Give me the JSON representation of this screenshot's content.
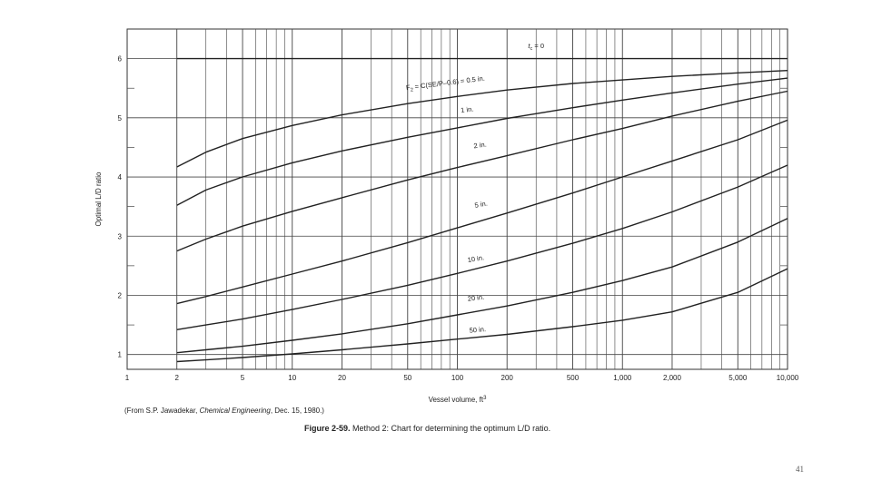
{
  "chart_data": {
    "type": "line",
    "xscale": "log",
    "xlim": [
      1,
      10000
    ],
    "ylim": [
      0.75,
      6.5
    ],
    "grid": true,
    "legend": "none",
    "ylabel": "Optimal L/D ratio",
    "xlabel": "Vessel volume, ft",
    "xlabel_superscript": "3",
    "x_ticks": [
      {
        "v": 1,
        "label": "1"
      },
      {
        "v": 2,
        "label": "2"
      },
      {
        "v": 5,
        "label": "5"
      },
      {
        "v": 10,
        "label": "10"
      },
      {
        "v": 20,
        "label": "20"
      },
      {
        "v": 50,
        "label": "50"
      },
      {
        "v": 100,
        "label": "100"
      },
      {
        "v": 200,
        "label": "200"
      },
      {
        "v": 500,
        "label": "500"
      },
      {
        "v": 1000,
        "label": "1,000"
      },
      {
        "v": 2000,
        "label": "2,000"
      },
      {
        "v": 5000,
        "label": "5,000"
      },
      {
        "v": 10000,
        "label": "10,000"
      }
    ],
    "y_ticks": [
      {
        "v": 1,
        "label": "1"
      },
      {
        "v": 2,
        "label": "2"
      },
      {
        "v": 3,
        "label": "3"
      },
      {
        "v": 4,
        "label": "4"
      },
      {
        "v": 5,
        "label": "5"
      },
      {
        "v": 6,
        "label": "6"
      }
    ],
    "series": [
      {
        "name": "tc = 0",
        "label_pre": "t",
        "label_sub": "c",
        "label_post": " = 0",
        "label_x": 300,
        "label_y": 6.18,
        "label_rot": 0,
        "x": [
          2,
          10000
        ],
        "y": [
          6.0,
          6.0
        ]
      },
      {
        "name": "F2 = C(SE/P - 0.6) = 0.5 in.",
        "label_pre": "F",
        "label_sub": "2",
        "label_post": " = C(SE/P–0.6) = 0.5 in.",
        "label_x": 85,
        "label_y": 5.55,
        "label_rot": -7,
        "x": [
          2,
          3,
          5,
          10,
          20,
          50,
          100,
          200,
          500,
          1000,
          2000,
          5000,
          10000
        ],
        "y": [
          4.17,
          4.42,
          4.65,
          4.87,
          5.05,
          5.24,
          5.36,
          5.47,
          5.58,
          5.64,
          5.7,
          5.76,
          5.8
        ]
      },
      {
        "name": "1 in.",
        "label_pre": "1 in.",
        "label_sub": "",
        "label_post": "",
        "label_x": 115,
        "label_y": 5.1,
        "label_rot": -7,
        "x": [
          2,
          3,
          5,
          10,
          20,
          50,
          100,
          200,
          500,
          1000,
          2000,
          5000,
          10000
        ],
        "y": [
          3.52,
          3.78,
          4.0,
          4.24,
          4.44,
          4.67,
          4.83,
          4.99,
          5.17,
          5.3,
          5.42,
          5.57,
          5.67
        ]
      },
      {
        "name": "2 in.",
        "label_pre": "2 in.",
        "label_sub": "",
        "label_post": "",
        "label_x": 138,
        "label_y": 4.5,
        "label_rot": -8,
        "x": [
          2,
          3,
          5,
          10,
          20,
          50,
          100,
          200,
          500,
          1000,
          2000,
          5000,
          10000
        ],
        "y": [
          2.75,
          2.95,
          3.17,
          3.42,
          3.65,
          3.95,
          4.16,
          4.36,
          4.63,
          4.82,
          5.03,
          5.28,
          5.45
        ]
      },
      {
        "name": "5 in.",
        "label_pre": "5 in.",
        "label_sub": "",
        "label_post": "",
        "label_x": 140,
        "label_y": 3.5,
        "label_rot": -10,
        "x": [
          2,
          3,
          5,
          10,
          20,
          50,
          100,
          200,
          500,
          1000,
          2000,
          5000,
          10000
        ],
        "y": [
          1.86,
          1.98,
          2.14,
          2.36,
          2.58,
          2.89,
          3.14,
          3.39,
          3.73,
          4.0,
          4.27,
          4.63,
          4.96
        ]
      },
      {
        "name": "10 in.",
        "label_pre": "10 in.",
        "label_sub": "",
        "label_post": "",
        "label_x": 130,
        "label_y": 2.58,
        "label_rot": -9,
        "x": [
          2,
          3,
          5,
          10,
          20,
          50,
          100,
          200,
          500,
          1000,
          2000,
          5000,
          10000
        ],
        "y": [
          1.42,
          1.5,
          1.6,
          1.76,
          1.93,
          2.17,
          2.37,
          2.58,
          2.88,
          3.13,
          3.41,
          3.83,
          4.2
        ]
      },
      {
        "name": "20 in.",
        "label_pre": "20 in.",
        "label_sub": "",
        "label_post": "",
        "label_x": 130,
        "label_y": 1.92,
        "label_rot": -7,
        "x": [
          2,
          3,
          5,
          10,
          20,
          50,
          100,
          200,
          500,
          1000,
          2000,
          5000,
          10000
        ],
        "y": [
          1.03,
          1.08,
          1.14,
          1.24,
          1.35,
          1.52,
          1.67,
          1.82,
          2.05,
          2.25,
          2.48,
          2.9,
          3.3
        ]
      },
      {
        "name": "50 in.",
        "label_pre": "50 in.",
        "label_sub": "",
        "label_post": "",
        "label_x": 133,
        "label_y": 1.38,
        "label_rot": -5,
        "x": [
          2,
          3,
          5,
          10,
          20,
          50,
          100,
          200,
          500,
          1000,
          2000,
          5000,
          10000
        ],
        "y": [
          0.88,
          0.91,
          0.95,
          1.01,
          1.08,
          1.18,
          1.26,
          1.34,
          1.47,
          1.58,
          1.72,
          2.05,
          2.45
        ]
      }
    ]
  },
  "source_note": {
    "pre": "(From S.P. Jawadekar, ",
    "journal": "Chemical Engineering",
    "post": ", Dec. 15, 1980.)"
  },
  "caption": {
    "label": "Figure 2-59.",
    "text": " Method 2: Chart for determining the optimum L/D ratio."
  },
  "page_number": "41"
}
